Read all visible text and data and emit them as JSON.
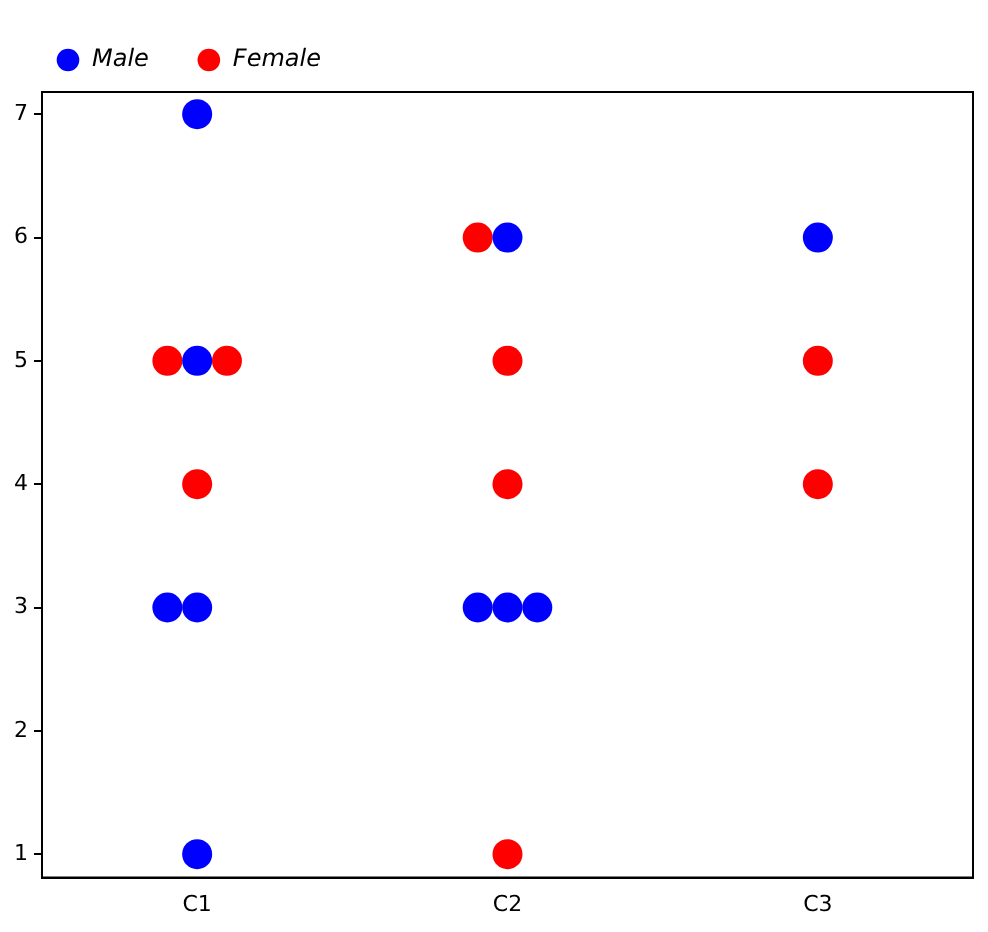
{
  "chart_data": {
    "type": "scatter",
    "categories": [
      "C1",
      "C2",
      "C3"
    ],
    "series": [
      {
        "name": "Male",
        "color": "#0000ff",
        "x": [
          "C1",
          "C1",
          "C1",
          "C1",
          "C1",
          "C2",
          "C2",
          "C2",
          "C2",
          "C3"
        ],
        "values": [
          7,
          5,
          3,
          3,
          1,
          6,
          3,
          3,
          3,
          6
        ]
      },
      {
        "name": "Female",
        "color": "#ff0000",
        "x": [
          "C1",
          "C1",
          "C1",
          "C2",
          "C2",
          "C2",
          "C2",
          "C3",
          "C3"
        ],
        "values": [
          5,
          5,
          4,
          6,
          5,
          4,
          1,
          5,
          4
        ]
      }
    ],
    "ylim": [
      0.81,
      7.18
    ],
    "yticks": [
      1,
      2,
      3,
      4,
      5,
      6,
      7
    ],
    "grid": false,
    "legend": "top left",
    "marker": "circle"
  }
}
